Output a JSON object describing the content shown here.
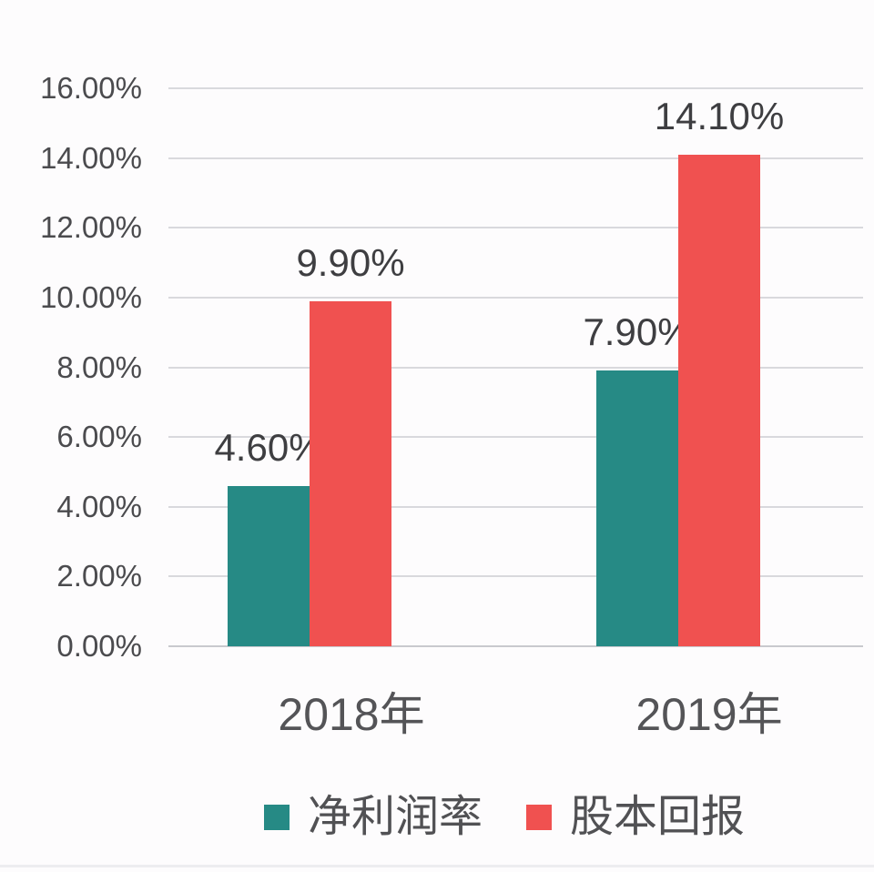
{
  "chart_data": {
    "type": "bar",
    "title": "",
    "categories": [
      "2018年",
      "2019年"
    ],
    "series": [
      {
        "name": "净利润率",
        "color": "#268a85",
        "values": [
          4.6,
          7.9
        ],
        "data_labels": [
          "4.60%",
          "7.90%"
        ]
      },
      {
        "name": "股本回报",
        "color": "#f05150",
        "values": [
          9.9,
          14.1
        ],
        "data_labels": [
          "9.90%",
          "14.10%"
        ]
      }
    ],
    "ylim": [
      0,
      16
    ],
    "ytick_step": 2,
    "ytick_labels": [
      "0.00%",
      "2.00%",
      "4.00%",
      "6.00%",
      "8.00%",
      "10.00%",
      "12.00%",
      "14.00%",
      "16.00%"
    ],
    "xlabel": "",
    "ylabel": "",
    "grid": "horizontal",
    "legend_position": "bottom",
    "colors": {
      "grid_line": "#d9d9dd",
      "baseline": "#c9c9ce",
      "background": "#fdfcfd",
      "ytick_text": "#4b4b4e",
      "data_label_text": "#3e3e41",
      "category_text": "#545457",
      "legend_text": "#515154"
    }
  }
}
